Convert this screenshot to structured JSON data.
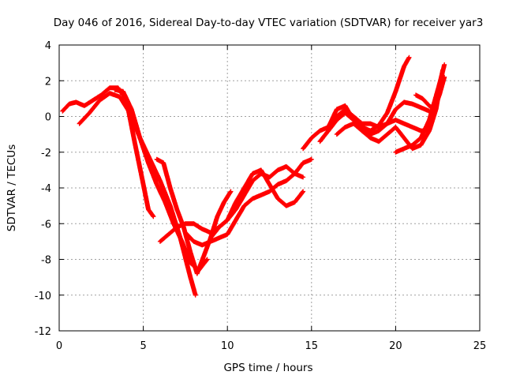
{
  "chart_data": {
    "type": "scatter",
    "title": "Day 046 of 2016, Sidereal Day-to-day VTEC variation (SDTVAR) for receiver yar3",
    "xlabel": "GPS time / hours",
    "ylabel": "SDTVAR / TECUs",
    "xlim": [
      0,
      25
    ],
    "ylim": [
      -12,
      4
    ],
    "xticks": [
      0,
      5,
      10,
      15,
      20,
      25
    ],
    "yticks": [
      -12,
      -10,
      -8,
      -6,
      -4,
      -2,
      0,
      2,
      4
    ],
    "grid": true,
    "legend": "none",
    "marker": "plus",
    "color": "#ff0000",
    "series": [
      {
        "x": [
          0.2,
          0.6,
          1.0,
          1.5,
          2.0,
          2.5,
          3.0,
          3.5,
          4.0,
          4.5,
          5.0,
          5.3,
          5.6
        ],
        "y": [
          0.3,
          0.7,
          0.8,
          0.6,
          0.9,
          1.2,
          1.6,
          1.6,
          0.9,
          -1.5,
          -3.8,
          -5.2,
          -5.6
        ]
      },
      {
        "x": [
          1.2,
          1.8,
          2.4,
          3.0,
          3.6,
          4.2,
          4.8,
          5.4,
          6.0,
          6.6,
          7.2,
          7.8,
          8.1
        ],
        "y": [
          -0.4,
          0.2,
          0.9,
          1.3,
          1.1,
          0.2,
          -1.2,
          -2.4,
          -3.6,
          -5.0,
          -6.8,
          -9.0,
          -10.0
        ]
      },
      {
        "x": [
          3.3,
          3.8,
          4.3,
          4.8,
          5.3,
          5.8,
          6.3,
          6.8,
          7.3,
          7.8,
          8.3,
          8.8
        ],
        "y": [
          1.5,
          1.4,
          0.4,
          -1.2,
          -2.6,
          -3.8,
          -4.8,
          -6.0,
          -7.0,
          -8.2,
          -8.6,
          -8.0
        ]
      },
      {
        "x": [
          5.8,
          6.2,
          6.6,
          7.0,
          7.4,
          7.8,
          8.2,
          8.6,
          9.0,
          9.4,
          9.8,
          10.2
        ],
        "y": [
          -2.4,
          -2.6,
          -4.0,
          -5.2,
          -6.2,
          -7.6,
          -8.8,
          -7.8,
          -6.8,
          -5.6,
          -4.8,
          -4.2
        ]
      },
      {
        "x": [
          6.0,
          6.5,
          7.0,
          7.5,
          8.0,
          8.5,
          9.0,
          9.5,
          10.0,
          10.5,
          11.0,
          11.5,
          12.0,
          12.5,
          13.0,
          13.5,
          14.0,
          14.5
        ],
        "y": [
          -7.0,
          -6.6,
          -6.2,
          -6.0,
          -6.0,
          -6.3,
          -6.5,
          -6.2,
          -5.8,
          -5.2,
          -4.4,
          -3.6,
          -3.2,
          -3.4,
          -3.0,
          -2.8,
          -3.2,
          -3.4
        ]
      },
      {
        "x": [
          7.5,
          8.0,
          8.5,
          9.0,
          9.5,
          10.0,
          10.5,
          11.0,
          11.5,
          12.0,
          12.5,
          13.0,
          13.5,
          14.0,
          14.5,
          15.0
        ],
        "y": [
          -6.5,
          -7.0,
          -7.2,
          -7.0,
          -6.8,
          -6.6,
          -5.8,
          -5.0,
          -4.6,
          -4.4,
          -4.2,
          -3.8,
          -3.6,
          -3.2,
          -2.6,
          -2.4
        ]
      },
      {
        "x": [
          9.0,
          9.5,
          10.0,
          10.5,
          11.0,
          11.5,
          12.0,
          12.5,
          13.0,
          13.5,
          14.0,
          14.5
        ],
        "y": [
          -6.8,
          -6.2,
          -5.8,
          -4.8,
          -4.0,
          -3.2,
          -3.0,
          -3.8,
          -4.6,
          -5.0,
          -4.8,
          -4.2
        ]
      },
      {
        "x": [
          14.5,
          15.0,
          15.5,
          16.0,
          16.5,
          17.0,
          17.5,
          18.0,
          18.5,
          19.0,
          19.5,
          20.0,
          20.5,
          20.8
        ],
        "y": [
          -1.8,
          -1.2,
          -0.8,
          -0.6,
          0.4,
          0.6,
          -0.2,
          -0.6,
          -0.8,
          -0.5,
          0.2,
          1.4,
          2.8,
          3.3
        ]
      },
      {
        "x": [
          15.5,
          16.0,
          16.5,
          17.0,
          17.5,
          18.0,
          18.5,
          19.0,
          19.5,
          20.0,
          20.5,
          21.0,
          21.5,
          22.0
        ],
        "y": [
          -1.4,
          -0.8,
          -0.2,
          0.2,
          -0.2,
          -0.8,
          -1.0,
          -0.8,
          -0.4,
          0.4,
          0.8,
          0.7,
          0.5,
          0.3
        ]
      },
      {
        "x": [
          16.0,
          16.5,
          17.0,
          17.5,
          18.0,
          18.5,
          19.0,
          19.5,
          20.0,
          20.5,
          21.0,
          21.5,
          22.0
        ],
        "y": [
          -0.8,
          0.0,
          0.4,
          0.0,
          -0.4,
          -0.4,
          -0.6,
          -0.4,
          -0.2,
          -0.4,
          -0.6,
          -0.8,
          -0.8
        ]
      },
      {
        "x": [
          16.5,
          17.0,
          17.5,
          18.0,
          18.5,
          19.0,
          19.5,
          20.0,
          20.5,
          21.0,
          21.5,
          22.0,
          22.4,
          22.8
        ],
        "y": [
          -1.0,
          -0.6,
          -0.4,
          -0.8,
          -1.2,
          -1.4,
          -1.0,
          -0.6,
          -1.2,
          -1.8,
          -1.6,
          -0.8,
          0.4,
          2.6
        ]
      },
      {
        "x": [
          20.0,
          20.5,
          21.0,
          21.5,
          22.0,
          22.3,
          22.6,
          22.9
        ],
        "y": [
          -2.0,
          -1.8,
          -1.6,
          -1.2,
          -0.2,
          0.8,
          1.8,
          2.9
        ]
      },
      {
        "x": [
          21.2,
          21.6,
          22.0,
          22.3,
          22.6,
          22.9
        ],
        "y": [
          1.2,
          1.0,
          0.6,
          0.4,
          1.2,
          2.2
        ]
      }
    ]
  }
}
